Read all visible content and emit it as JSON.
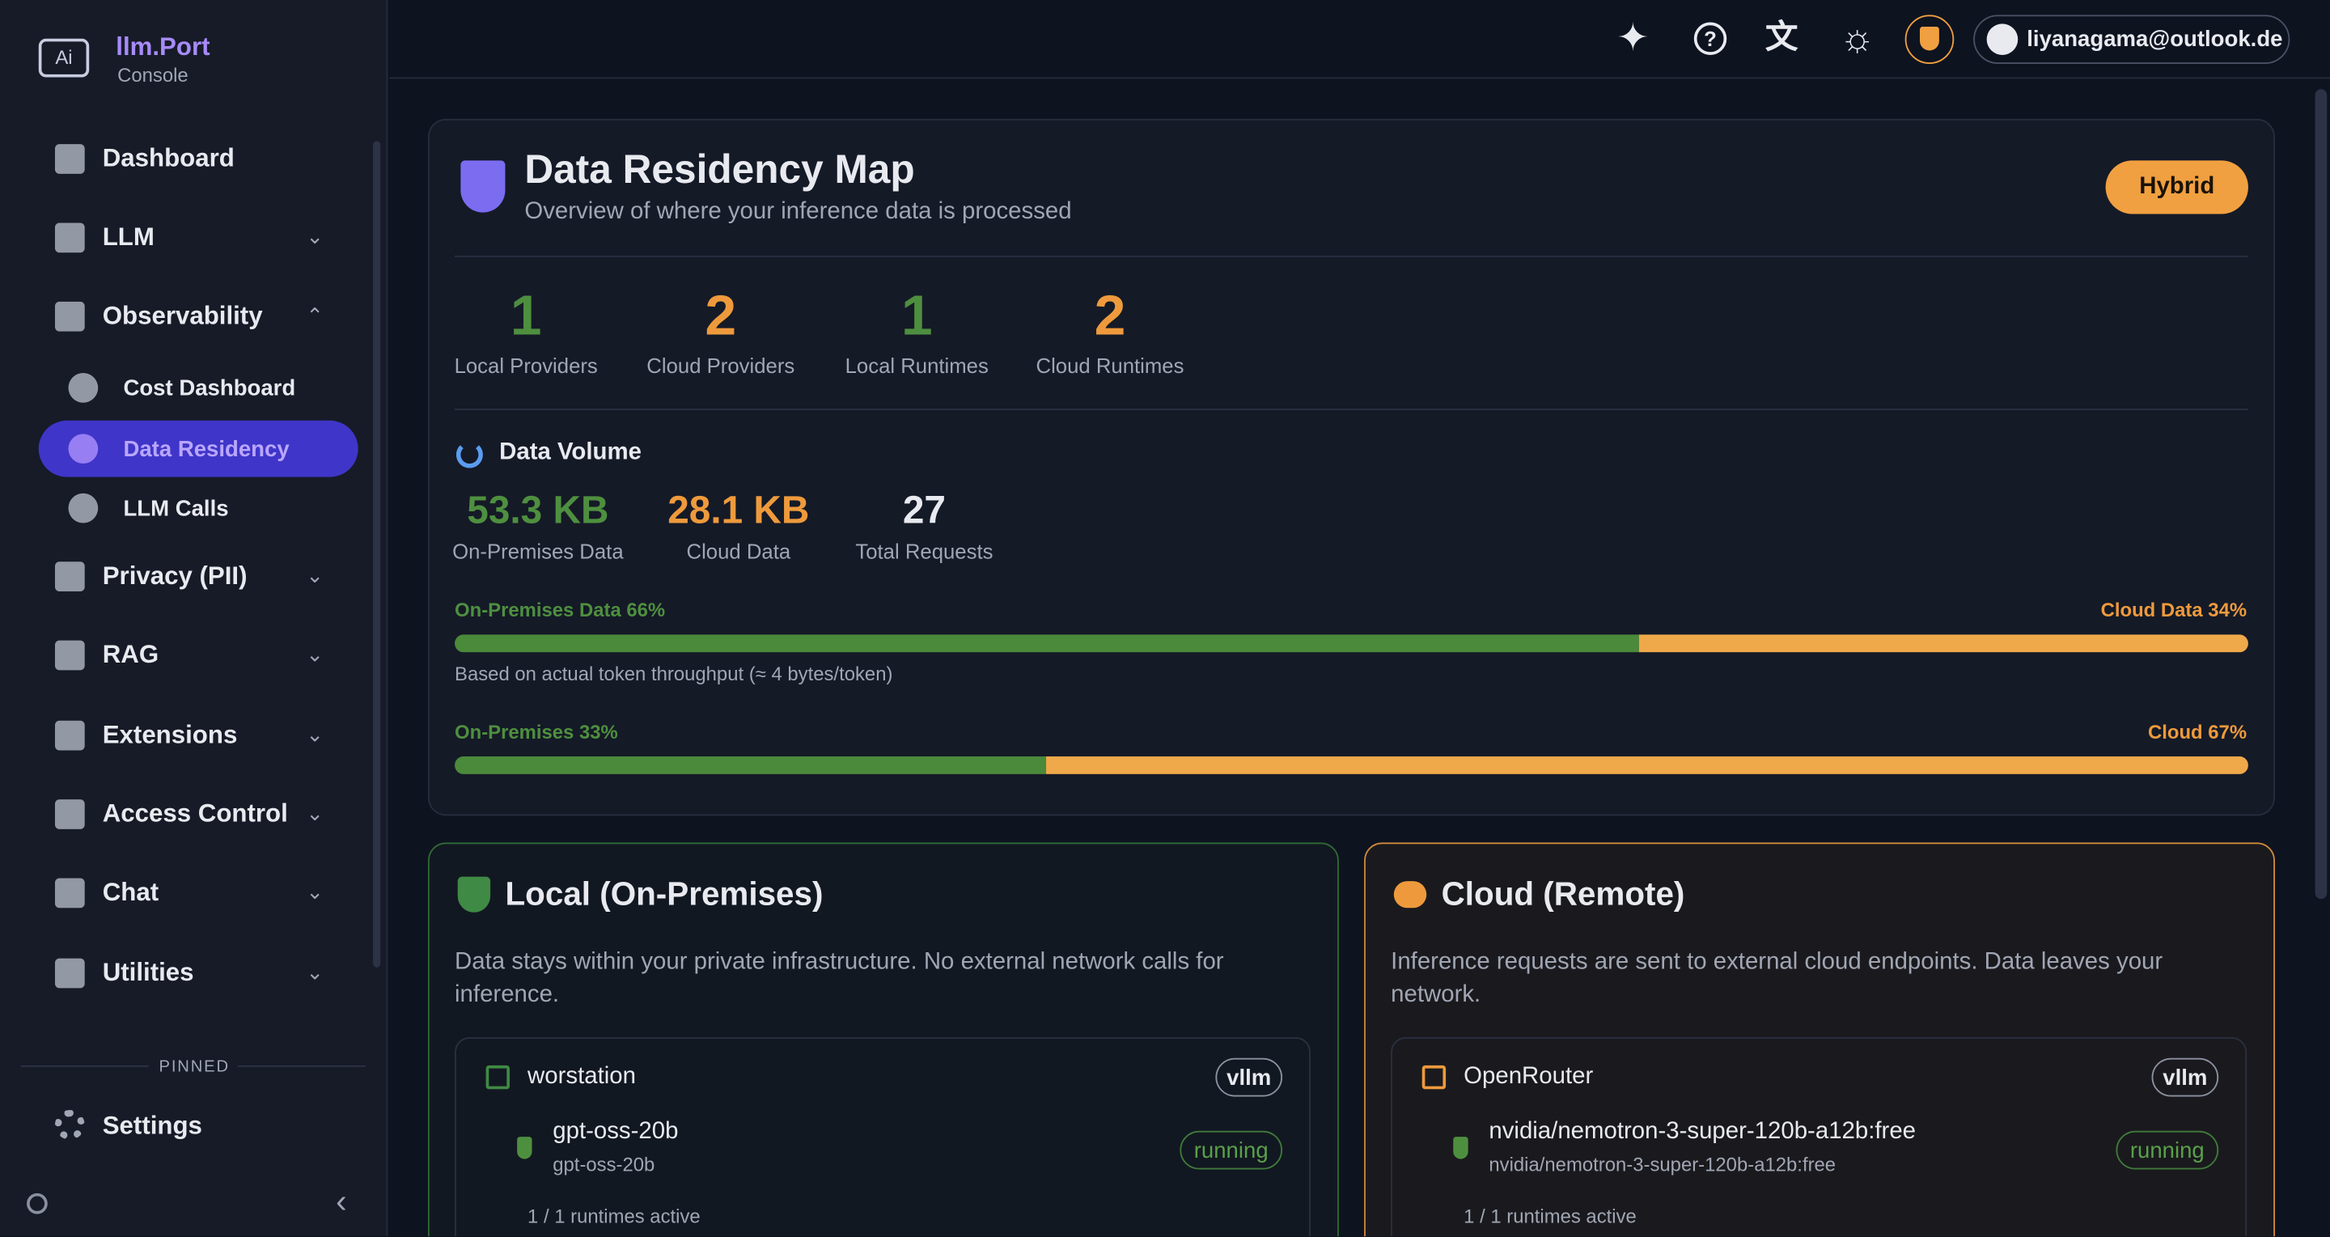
{
  "brand": {
    "name": "llm.Port",
    "sub": "Console"
  },
  "nav": [
    {
      "label": "Dashboard"
    },
    {
      "label": "LLM"
    },
    {
      "label": "Observability"
    },
    {
      "label": "Cost Dashboard"
    },
    {
      "label": "Data Residency"
    },
    {
      "label": "LLM Calls"
    },
    {
      "label": "Privacy (PII)"
    },
    {
      "label": "RAG"
    },
    {
      "label": "Extensions"
    },
    {
      "label": "Access Control"
    },
    {
      "label": "Chat"
    },
    {
      "label": "Utilities"
    }
  ],
  "pinned": {
    "heading": "PINNED",
    "items": [
      "Settings"
    ]
  },
  "topbar": {
    "user": "liyanagama@outlook.de"
  },
  "residency": {
    "title": "Data Residency Map",
    "subtitle": "Overview of where your inference data is processed",
    "mode": "Hybrid",
    "stats": [
      {
        "value": 1,
        "label": "Local Providers"
      },
      {
        "value": 2,
        "label": "Cloud Providers"
      },
      {
        "value": 1,
        "label": "Local Runtimes"
      },
      {
        "value": 2,
        "label": "Cloud Runtimes"
      }
    ],
    "volume": {
      "heading": "Data Volume",
      "metrics": [
        {
          "value": "53.3 KB",
          "label": "On-Premises Data"
        },
        {
          "value": "28.1 KB",
          "label": "Cloud Data"
        },
        {
          "value": 27,
          "label": "Total Requests"
        }
      ]
    },
    "bars": [
      {
        "left_label": "On-Premises Data 66%",
        "left_value": 66,
        "right_label": "Cloud Data 34%",
        "right_value": 34,
        "note": "Based on actual token throughput (≈ 4 bytes/token)"
      },
      {
        "left_label": "On-Premises 33%",
        "left_value": 33,
        "right_label": "Cloud 67%",
        "right_value": 67
      }
    ]
  },
  "local": {
    "title": "Local (On-Premises)",
    "description": "Data stays within your private infrastructure. No external network calls for inference.",
    "providers": [
      {
        "name": "worstation",
        "engine": "vllm",
        "models": [
          {
            "name": "gpt-oss-20b",
            "id": "gpt-oss-20b",
            "status": "running"
          }
        ],
        "summary": "1 / 1 runtimes active"
      }
    ]
  },
  "cloud": {
    "title": "Cloud (Remote)",
    "description": "Inference requests are sent to external cloud endpoints. Data leaves your network.",
    "providers": [
      {
        "name": "OpenRouter",
        "engine": "vllm",
        "models": [
          {
            "name": "nvidia/nemotron-3-super-120b-a12b:free",
            "id": "nvidia/nemotron-3-super-120b-a12b:free",
            "status": "running"
          }
        ],
        "summary": "1 / 1 runtimes active"
      }
    ]
  }
}
